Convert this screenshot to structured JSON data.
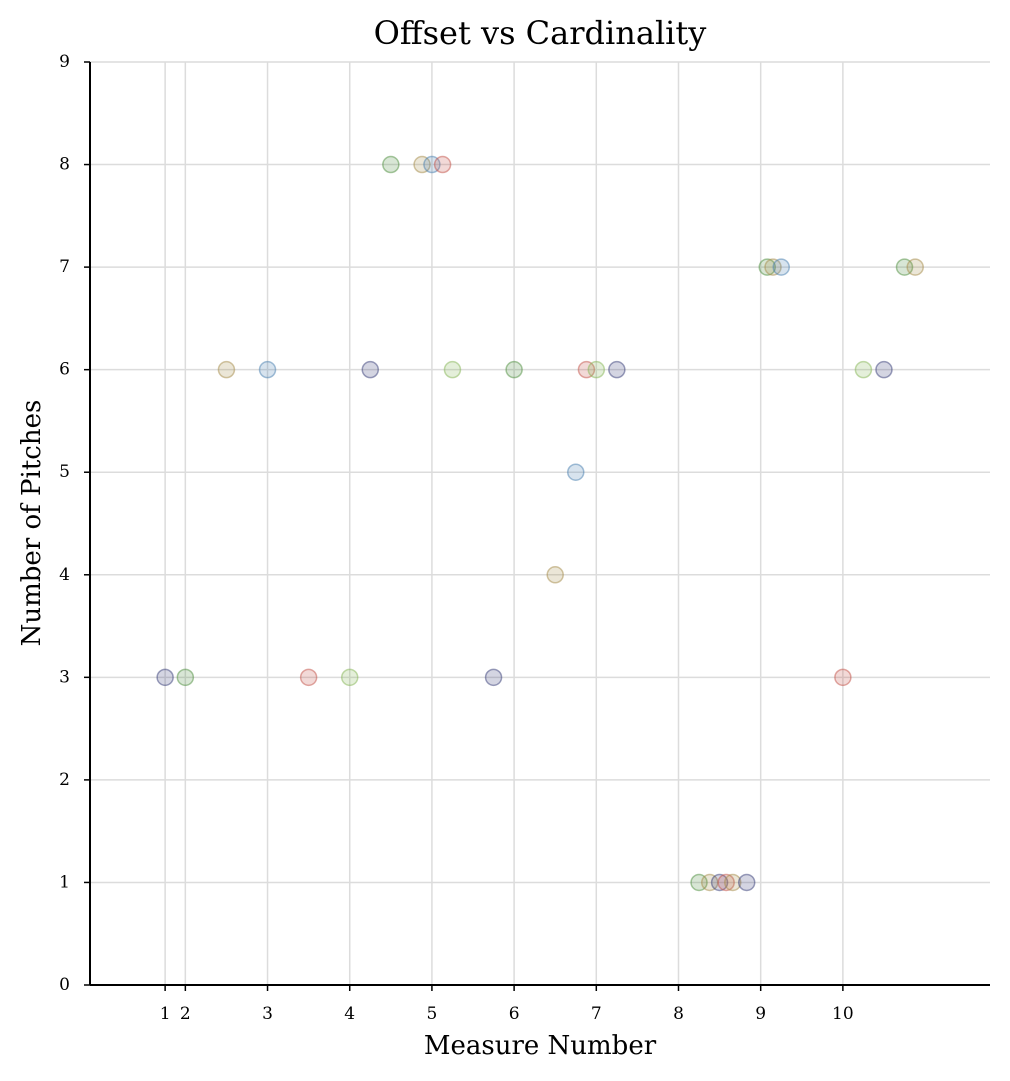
{
  "chart_data": {
    "type": "scatter",
    "title": "Offset vs Cardinality",
    "xlabel": "Measure Number",
    "ylabel": "Number of Pitches",
    "ylim": [
      0,
      9
    ],
    "yticks": [
      "0",
      "1",
      "2",
      "3",
      "4",
      "5",
      "6",
      "7",
      "8",
      "9"
    ],
    "xticks": [
      {
        "value": 0.914,
        "label": "1"
      },
      {
        "value": 1.16,
        "label": "2"
      },
      {
        "value": 2.16,
        "label": "3"
      },
      {
        "value": 3.16,
        "label": "4"
      },
      {
        "value": 4.16,
        "label": "5"
      },
      {
        "value": 5.16,
        "label": "6"
      },
      {
        "value": 6.16,
        "label": "7"
      },
      {
        "value": 7.16,
        "label": "8"
      },
      {
        "value": 8.16,
        "label": "9"
      },
      {
        "value": 9.16,
        "label": "10"
      }
    ],
    "xlim": [
      0,
      10.95
    ],
    "grid": true,
    "colors": {
      "navy": "#3a3f7a",
      "green": "#4f8f3f",
      "tan": "#a68b4a",
      "blue": "#4a7fb0",
      "red": "#c4534a",
      "lime": "#86b556"
    },
    "points": [
      {
        "x": 0.914,
        "y": 3,
        "color": "navy"
      },
      {
        "x": 1.16,
        "y": 3,
        "color": "green"
      },
      {
        "x": 1.66,
        "y": 6,
        "color": "tan"
      },
      {
        "x": 2.16,
        "y": 6,
        "color": "blue"
      },
      {
        "x": 2.66,
        "y": 3,
        "color": "red"
      },
      {
        "x": 3.16,
        "y": 3,
        "color": "lime"
      },
      {
        "x": 3.41,
        "y": 6,
        "color": "navy"
      },
      {
        "x": 3.66,
        "y": 8,
        "color": "green"
      },
      {
        "x": 4.04,
        "y": 8,
        "color": "tan"
      },
      {
        "x": 4.16,
        "y": 8,
        "color": "blue"
      },
      {
        "x": 4.29,
        "y": 8,
        "color": "red"
      },
      {
        "x": 4.41,
        "y": 6,
        "color": "lime"
      },
      {
        "x": 4.91,
        "y": 3,
        "color": "navy"
      },
      {
        "x": 5.16,
        "y": 6,
        "color": "green"
      },
      {
        "x": 5.66,
        "y": 4,
        "color": "tan"
      },
      {
        "x": 5.91,
        "y": 5,
        "color": "blue"
      },
      {
        "x": 6.04,
        "y": 6,
        "color": "red"
      },
      {
        "x": 6.16,
        "y": 6,
        "color": "lime"
      },
      {
        "x": 6.41,
        "y": 6,
        "color": "navy"
      },
      {
        "x": 7.41,
        "y": 1,
        "color": "green"
      },
      {
        "x": 7.54,
        "y": 1,
        "color": "tan"
      },
      {
        "x": 7.66,
        "y": 1,
        "color": "navy"
      },
      {
        "x": 7.74,
        "y": 1,
        "color": "red"
      },
      {
        "x": 7.82,
        "y": 1,
        "color": "tan"
      },
      {
        "x": 7.99,
        "y": 1,
        "color": "navy"
      },
      {
        "x": 8.24,
        "y": 7,
        "color": "green"
      },
      {
        "x": 8.31,
        "y": 7,
        "color": "tan"
      },
      {
        "x": 8.41,
        "y": 7,
        "color": "blue"
      },
      {
        "x": 9.16,
        "y": 3,
        "color": "red"
      },
      {
        "x": 9.41,
        "y": 6,
        "color": "lime"
      },
      {
        "x": 9.66,
        "y": 6,
        "color": "navy"
      },
      {
        "x": 9.91,
        "y": 7,
        "color": "green"
      },
      {
        "x": 10.04,
        "y": 7,
        "color": "tan"
      }
    ]
  }
}
